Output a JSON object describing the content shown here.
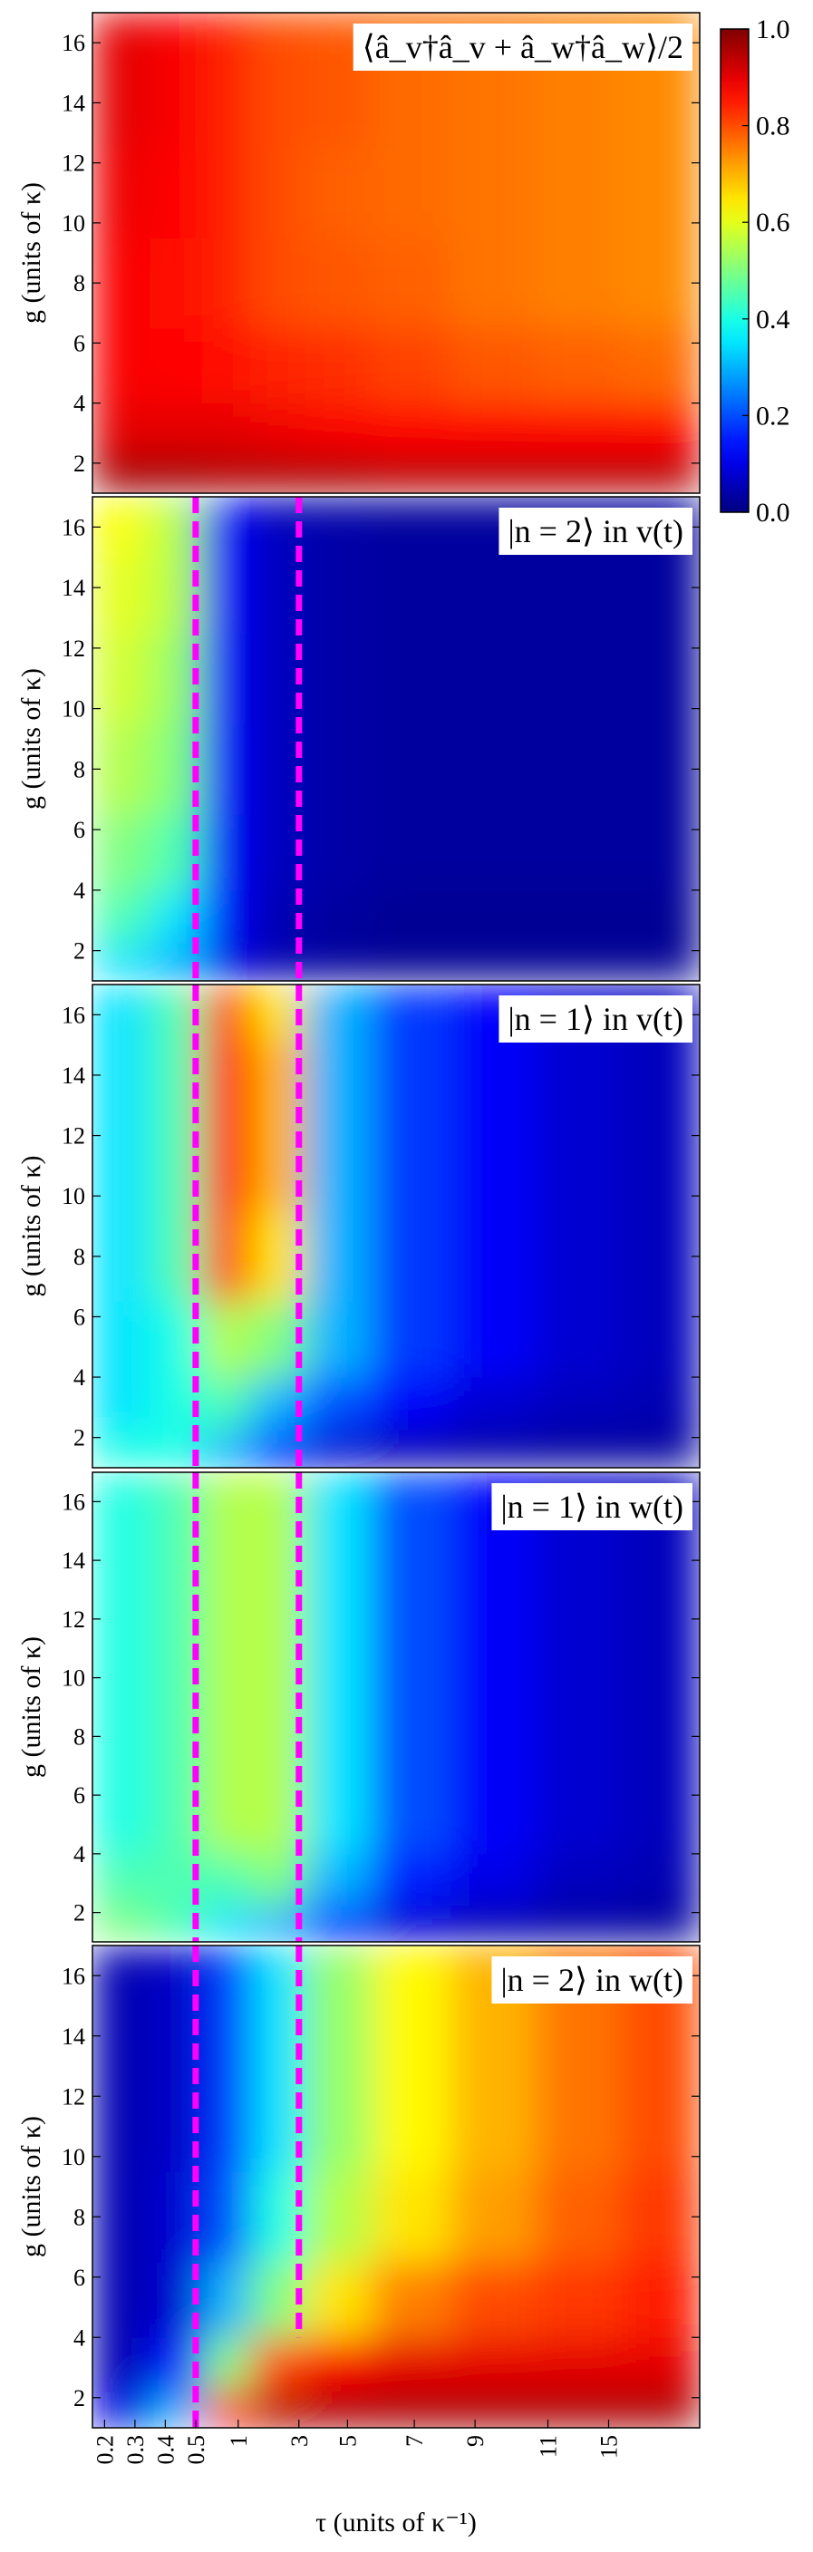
{
  "chart_data": [
    {
      "type": "heatmap",
      "title": "⟨â_v†â_v + â_w†â_w⟩/2",
      "ylabel": "g (units of κ)",
      "xlim": [
        0,
        100
      ],
      "ylim": [
        1,
        17
      ],
      "yticks": [
        2,
        4,
        6,
        8,
        10,
        12,
        14,
        16
      ],
      "z_x": [
        5,
        14,
        22,
        30,
        40,
        52,
        66,
        80,
        94
      ],
      "z_y": [
        1.5,
        3,
        5,
        8,
        11,
        14,
        16.5
      ],
      "z": [
        [
          0.97,
          0.97,
          0.96,
          0.96,
          0.96,
          0.95,
          0.95,
          0.95,
          0.95
        ],
        [
          0.9,
          0.9,
          0.9,
          0.89,
          0.88,
          0.87,
          0.87,
          0.87,
          0.87
        ],
        [
          0.88,
          0.87,
          0.86,
          0.84,
          0.83,
          0.81,
          0.79,
          0.78,
          0.77
        ],
        [
          0.88,
          0.86,
          0.84,
          0.8,
          0.79,
          0.78,
          0.76,
          0.75,
          0.74
        ],
        [
          0.89,
          0.87,
          0.84,
          0.8,
          0.78,
          0.77,
          0.76,
          0.75,
          0.74
        ],
        [
          0.9,
          0.88,
          0.84,
          0.8,
          0.79,
          0.77,
          0.76,
          0.75,
          0.74
        ],
        [
          0.9,
          0.88,
          0.84,
          0.8,
          0.79,
          0.77,
          0.76,
          0.75,
          0.74
        ]
      ],
      "colorbar": {
        "clim": [
          0,
          1
        ],
        "ticks": [
          {
            "value": 0,
            "label": "0.0"
          },
          {
            "value": 0.2,
            "label": "0.2"
          },
          {
            "value": 0.4,
            "label": "0.4"
          },
          {
            "value": 0.6,
            "label": "0.6"
          },
          {
            "value": 0.8,
            "label": "0.8"
          },
          {
            "value": 1,
            "label": "1.0"
          }
        ]
      }
    },
    {
      "type": "heatmap",
      "title": "|n = 2⟩ in v(t)",
      "ylabel": "g (units of κ)",
      "xlim": [
        0,
        100
      ],
      "ylim": [
        1,
        17
      ],
      "yticks": [
        2,
        4,
        6,
        8,
        10,
        12,
        14,
        16
      ],
      "z_x": [
        5,
        14,
        22,
        30,
        40,
        52,
        66,
        80,
        94
      ],
      "z_y": [
        1.5,
        3,
        5,
        8,
        11,
        14,
        16.5
      ],
      "z": [
        [
          0.35,
          0.3,
          0.1,
          0.05,
          0.03,
          0.02,
          0.02,
          0.02,
          0.02
        ],
        [
          0.45,
          0.35,
          0.12,
          0.05,
          0.03,
          0.02,
          0.02,
          0.02,
          0.02
        ],
        [
          0.5,
          0.45,
          0.12,
          0.06,
          0.04,
          0.03,
          0.03,
          0.03,
          0.03
        ],
        [
          0.55,
          0.5,
          0.12,
          0.06,
          0.04,
          0.03,
          0.03,
          0.03,
          0.03
        ],
        [
          0.58,
          0.52,
          0.12,
          0.06,
          0.04,
          0.03,
          0.03,
          0.03,
          0.03
        ],
        [
          0.6,
          0.55,
          0.12,
          0.06,
          0.04,
          0.03,
          0.03,
          0.03,
          0.03
        ],
        [
          0.62,
          0.55,
          0.12,
          0.06,
          0.04,
          0.03,
          0.03,
          0.03,
          0.03
        ]
      ],
      "vlines": {
        "color": "#ff00ff",
        "lines": [
          {
            "x": 17
          },
          {
            "x": 34
          }
        ]
      }
    },
    {
      "type": "heatmap",
      "title": "|n = 1⟩ in v(t)",
      "ylabel": "g (units of κ)",
      "xlim": [
        0,
        100
      ],
      "ylim": [
        1,
        17
      ],
      "yticks": [
        2,
        4,
        6,
        8,
        10,
        12,
        14,
        16
      ],
      "z_x": [
        5,
        14,
        22,
        30,
        40,
        52,
        66,
        80,
        94
      ],
      "z_y": [
        1.5,
        3,
        5,
        8,
        11,
        14,
        16.5
      ],
      "z": [
        [
          0.4,
          0.4,
          0.3,
          0.15,
          0.08,
          0.05,
          0.04,
          0.03,
          0.03
        ],
        [
          0.35,
          0.4,
          0.45,
          0.3,
          0.2,
          0.12,
          0.08,
          0.06,
          0.05
        ],
        [
          0.35,
          0.4,
          0.55,
          0.5,
          0.3,
          0.18,
          0.12,
          0.08,
          0.06
        ],
        [
          0.35,
          0.45,
          0.8,
          0.65,
          0.3,
          0.18,
          0.12,
          0.08,
          0.06
        ],
        [
          0.35,
          0.45,
          0.85,
          0.7,
          0.3,
          0.18,
          0.12,
          0.08,
          0.06
        ],
        [
          0.35,
          0.45,
          0.85,
          0.7,
          0.3,
          0.18,
          0.12,
          0.08,
          0.06
        ],
        [
          0.35,
          0.45,
          0.8,
          0.65,
          0.3,
          0.18,
          0.12,
          0.08,
          0.06
        ]
      ],
      "vlines": {
        "color": "#ff00ff",
        "lines": [
          {
            "x": 17
          },
          {
            "x": 34
          }
        ]
      }
    },
    {
      "type": "heatmap",
      "title": "|n = 1⟩ in w(t)",
      "ylabel": "g (units of κ)",
      "xlim": [
        0,
        100
      ],
      "ylim": [
        1,
        17
      ],
      "yticks": [
        2,
        4,
        6,
        8,
        10,
        12,
        14,
        16
      ],
      "z_x": [
        5,
        14,
        22,
        30,
        40,
        52,
        66,
        80,
        94
      ],
      "z_y": [
        1.5,
        3,
        5,
        8,
        11,
        14,
        16.5
      ],
      "z": [
        [
          0.5,
          0.45,
          0.35,
          0.3,
          0.15,
          0.08,
          0.05,
          0.04,
          0.03
        ],
        [
          0.45,
          0.45,
          0.45,
          0.5,
          0.3,
          0.15,
          0.1,
          0.06,
          0.05
        ],
        [
          0.4,
          0.45,
          0.55,
          0.55,
          0.35,
          0.2,
          0.12,
          0.08,
          0.06
        ],
        [
          0.4,
          0.45,
          0.55,
          0.55,
          0.35,
          0.2,
          0.12,
          0.08,
          0.06
        ],
        [
          0.4,
          0.45,
          0.55,
          0.55,
          0.35,
          0.2,
          0.12,
          0.08,
          0.06
        ],
        [
          0.4,
          0.45,
          0.55,
          0.55,
          0.35,
          0.2,
          0.12,
          0.08,
          0.06
        ],
        [
          0.4,
          0.45,
          0.55,
          0.55,
          0.35,
          0.2,
          0.12,
          0.08,
          0.06
        ]
      ],
      "vlines": {
        "color": "#ff00ff",
        "lines": [
          {
            "x": 17
          },
          {
            "x": 34
          }
        ]
      }
    },
    {
      "type": "heatmap",
      "title": "|n = 2⟩ in w(t)",
      "ylabel": "g (units of κ)",
      "xlabel": "τ (units of κ⁻¹)",
      "xlim": [
        0,
        100
      ],
      "ylim": [
        1,
        17
      ],
      "yticks": [
        2,
        4,
        6,
        8,
        10,
        12,
        14,
        16
      ],
      "xticks": [
        {
          "value": 2,
          "label": "0.2"
        },
        {
          "value": 7,
          "label": "0.3"
        },
        {
          "value": 12,
          "label": "0.4"
        },
        {
          "value": 17,
          "label": "0.5"
        },
        {
          "value": 24,
          "label": "1"
        },
        {
          "value": 34,
          "label": "3"
        },
        {
          "value": 42,
          "label": "5"
        },
        {
          "value": 53,
          "label": "7"
        },
        {
          "value": 63,
          "label": "9"
        },
        {
          "value": 75,
          "label": "11"
        },
        {
          "value": 85,
          "label": "15"
        }
      ],
      "z_x": [
        5,
        14,
        22,
        30,
        40,
        52,
        66,
        80,
        94
      ],
      "z_y": [
        1.5,
        3,
        5,
        8,
        11,
        14,
        16.5
      ],
      "z": [
        [
          0.1,
          0.3,
          0.85,
          0.95,
          0.96,
          0.96,
          0.96,
          0.96,
          0.96
        ],
        [
          0.05,
          0.15,
          0.5,
          0.8,
          0.88,
          0.9,
          0.9,
          0.9,
          0.9
        ],
        [
          0.05,
          0.08,
          0.3,
          0.5,
          0.65,
          0.75,
          0.8,
          0.82,
          0.85
        ],
        [
          0.05,
          0.08,
          0.2,
          0.4,
          0.55,
          0.65,
          0.72,
          0.78,
          0.82
        ],
        [
          0.05,
          0.07,
          0.18,
          0.35,
          0.52,
          0.63,
          0.7,
          0.76,
          0.8
        ],
        [
          0.05,
          0.07,
          0.18,
          0.35,
          0.52,
          0.63,
          0.7,
          0.76,
          0.8
        ],
        [
          0.05,
          0.07,
          0.18,
          0.35,
          0.52,
          0.63,
          0.7,
          0.76,
          0.8
        ]
      ],
      "vlines": {
        "color": "#ff00ff",
        "lines": [
          {
            "x": 17
          },
          {
            "x": 34,
            "ymin": 4
          }
        ]
      }
    }
  ]
}
